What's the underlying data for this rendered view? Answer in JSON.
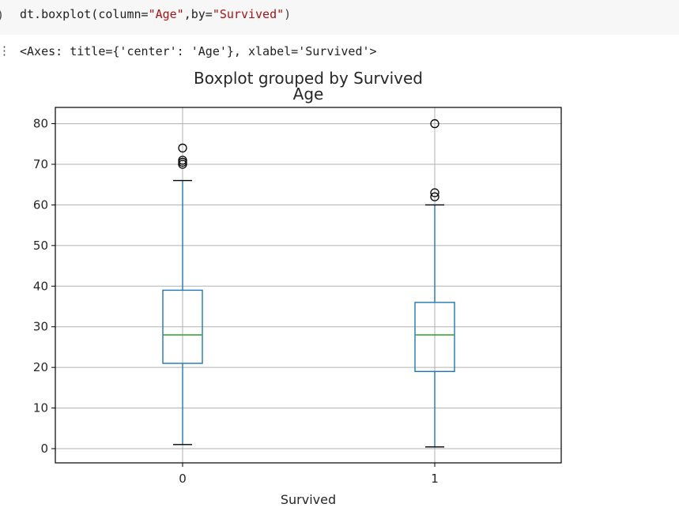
{
  "code_cell": {
    "prefix": "dt.boxplot(column=",
    "arg1": "\"Age\"",
    "sep": ",by=",
    "arg2": "\"Survived\"",
    "suffix": ")"
  },
  "output": {
    "repr": "<Axes: title={'center': 'Age'}, xlabel='Survived'>"
  },
  "colors": {
    "box": "#1f77b4",
    "median": "#2ca02c",
    "grid": "#b0b0b0",
    "axes": "#000000",
    "cell_bg": "#f7f7f7"
  },
  "chart_data": {
    "type": "boxplot",
    "suptitle": "Boxplot grouped by Survived",
    "title": "Age",
    "xlabel": "Survived",
    "ylabel": "",
    "categories": [
      "0",
      "1"
    ],
    "ylim": [
      -3.5,
      84
    ],
    "yticks": [
      0,
      10,
      20,
      30,
      40,
      50,
      60,
      70,
      80
    ],
    "grid": true,
    "boxes": [
      {
        "name": "0",
        "whisker_low": 1,
        "q1": 21,
        "median": 28,
        "q3": 39,
        "whisker_high": 66,
        "outliers": [
          70,
          70.5,
          71,
          74
        ]
      },
      {
        "name": "1",
        "whisker_low": 0.42,
        "q1": 19,
        "median": 28,
        "q3": 36,
        "whisker_high": 60,
        "outliers": [
          62,
          63,
          80
        ]
      }
    ]
  }
}
